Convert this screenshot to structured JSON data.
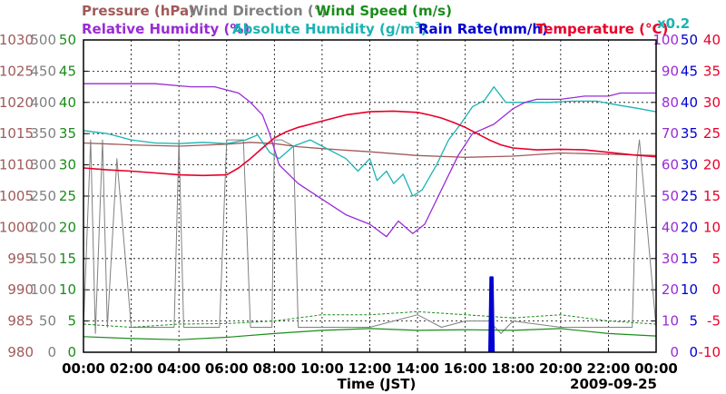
{
  "chart_data": {
    "type": "line",
    "date": "2009-09-25",
    "xlabel": "Time (JST)",
    "x_range_hours": [
      0,
      24
    ],
    "x_tick_labels": [
      "00:00",
      "02:00",
      "04:00",
      "06:00",
      "08:00",
      "10:00",
      "12:00",
      "14:00",
      "16:00",
      "18:00",
      "20:00",
      "22:00",
      "00:00"
    ],
    "legend": {
      "pressure": "Pressure (hPa)",
      "wind_direction": "Wind Direction (°)",
      "wind_speed": "Wind Speed (m/s)",
      "relative_humidity": "Relative Humidity (%)",
      "absolute_humidity_prefix": "Absolute Humidity (g/m",
      "absolute_humidity_sup": "3",
      "absolute_humidity_suffix": ")",
      "rain_rate": "Rain Rate(mm/h)",
      "temperature": "Temperature (°C)",
      "rain_scale_note": "x0.2"
    },
    "axes": {
      "pressure": {
        "range": [
          980,
          1030
        ],
        "ticks": [
          "980",
          "985",
          "990",
          "995",
          "1000",
          "1005",
          "1010",
          "1015",
          "1020",
          "1025",
          "1030"
        ]
      },
      "wind_direction": {
        "range": [
          0,
          500
        ],
        "ticks": [
          "0",
          "50",
          "100",
          "150",
          "200",
          "250",
          "300",
          "350",
          "400",
          "450",
          "500"
        ]
      },
      "wind_speed": {
        "range": [
          0,
          50
        ],
        "ticks": [
          "0",
          "5",
          "10",
          "15",
          "20",
          "25",
          "30",
          "35",
          "40",
          "45",
          "50"
        ]
      },
      "relative_humidity": {
        "range": [
          0,
          100
        ],
        "ticks": [
          "0",
          "10",
          "20",
          "30",
          "40",
          "50",
          "60",
          "70",
          "80",
          "90",
          "100"
        ]
      },
      "absolute_humidity": {
        "range": [
          0,
          50
        ],
        "ticks": [
          "0",
          "5",
          "10",
          "15",
          "20",
          "25",
          "30",
          "35",
          "40",
          "45",
          "50"
        ]
      },
      "temperature": {
        "range": [
          -10,
          40
        ],
        "ticks": [
          "-10",
          "-5",
          "0",
          "5",
          "10",
          "15",
          "20",
          "25",
          "30",
          "35",
          "40"
        ]
      }
    },
    "colors": {
      "pressure": "#a05a5a",
      "wind_direction": "#808080",
      "wind_speed": "#1a8c1a",
      "relative_humidity": "#9a2bd6",
      "absolute_humidity": "#1ab3b3",
      "rain_rate": "#0000d0",
      "temperature": "#e8002a"
    },
    "series": {
      "pressure_hPa": {
        "x": [
          0,
          2,
          4,
          6,
          7,
          8,
          9,
          10,
          12,
          14,
          16,
          18,
          20,
          22,
          24
        ],
        "y": [
          1013.5,
          1013.2,
          1013,
          1013.3,
          1013.6,
          1013.4,
          1012.9,
          1012.6,
          1012.1,
          1011.5,
          1011.2,
          1011.4,
          1011.9,
          1011.7,
          1011.5
        ]
      },
      "relative_humidity_pct": {
        "x": [
          0,
          1.5,
          3,
          4.5,
          5.5,
          6.5,
          7,
          7.5,
          7.8,
          8.2,
          9,
          10,
          11,
          12,
          12.7,
          13.2,
          13.8,
          14.3,
          15,
          15.7,
          16.3,
          17.2,
          18,
          18.5,
          19,
          20,
          21,
          22,
          22.5,
          24
        ],
        "y": [
          86,
          86,
          86,
          85,
          85,
          83,
          80,
          76,
          70,
          60,
          54,
          49,
          44,
          41,
          37,
          42,
          38,
          41,
          52,
          63,
          70,
          73,
          78,
          80,
          81,
          81,
          82,
          82,
          83,
          83
        ]
      },
      "absolute_humidity_gm3": {
        "x": [
          0,
          1,
          2,
          3,
          4,
          5,
          6,
          6.8,
          7.3,
          7.8,
          8.2,
          8.8,
          9.5,
          10,
          10.5,
          11,
          11.5,
          12,
          12.3,
          12.7,
          13,
          13.4,
          13.8,
          14.2,
          14.8,
          15.3,
          15.8,
          16.3,
          16.8,
          17.2,
          17.7,
          18.5,
          19.5,
          20.5,
          21.5,
          22.5,
          23.3,
          24
        ],
        "y": [
          35.5,
          35,
          34,
          33.5,
          33.4,
          33.6,
          33.4,
          34,
          34.8,
          32,
          31,
          33,
          34,
          33,
          32,
          31,
          29,
          31,
          27.5,
          29,
          27,
          28.5,
          25,
          26,
          30,
          34,
          36.5,
          39.3,
          40.3,
          42.5,
          40,
          40,
          40,
          40.2,
          40.2,
          39.5,
          39,
          38.5
        ]
      },
      "temperature_C": {
        "x": [
          0,
          1,
          2,
          3,
          4,
          5,
          6,
          6.5,
          7,
          7.5,
          8,
          8.5,
          9,
          9.5,
          10,
          11,
          12,
          13,
          14,
          14.5,
          15,
          15.5,
          16,
          16.5,
          17,
          17.5,
          18,
          19,
          20,
          21,
          22,
          23,
          24
        ],
        "y": [
          19.5,
          19.2,
          19,
          18.7,
          18.4,
          18.3,
          18.4,
          19.5,
          21,
          22.7,
          24.3,
          25.3,
          26,
          26.5,
          27,
          28,
          28.5,
          28.6,
          28.4,
          28,
          27.5,
          26.8,
          26,
          25,
          24,
          23.2,
          22.7,
          22.4,
          22.5,
          22.4,
          22,
          21.6,
          21.3
        ]
      },
      "wind_speed_ms": {
        "x": [
          0,
          2,
          4,
          6,
          8,
          10,
          12,
          14,
          16,
          18,
          20,
          22,
          24
        ],
        "y": [
          2.5,
          2.2,
          2,
          2.4,
          3,
          3.5,
          3.8,
          3.5,
          3.6,
          3.5,
          3.8,
          3,
          2.6
        ]
      },
      "wind_gust_ms": {
        "x": [
          0,
          2,
          4,
          6,
          8,
          10,
          12,
          14,
          16,
          18,
          20,
          22,
          24
        ],
        "y": [
          4.5,
          4,
          4.5,
          4.6,
          5,
          6,
          6,
          6.5,
          6,
          5.5,
          6,
          5,
          4.5
        ]
      },
      "wind_direction_deg": {
        "x": [
          0,
          0.3,
          0.5,
          0.8,
          1,
          1.4,
          2,
          3.8,
          4,
          4.2,
          5.7,
          6,
          6.7,
          7,
          7.9,
          8,
          8.3,
          8.8,
          9,
          12,
          13,
          14,
          15,
          16,
          17,
          17.5,
          18,
          20,
          22,
          23,
          23.2,
          23.3,
          24
        ],
        "y": [
          40,
          340,
          30,
          340,
          40,
          310,
          40,
          40,
          340,
          40,
          40,
          340,
          340,
          40,
          40,
          340,
          340,
          330,
          40,
          40,
          50,
          60,
          40,
          50,
          50,
          30,
          50,
          40,
          40,
          40,
          310,
          340,
          40
        ]
      },
      "rain_rate_mmh": {
        "x": [
          17,
          17.05,
          17.15,
          17.2
        ],
        "y": [
          0,
          12,
          12,
          0
        ]
      }
    }
  }
}
